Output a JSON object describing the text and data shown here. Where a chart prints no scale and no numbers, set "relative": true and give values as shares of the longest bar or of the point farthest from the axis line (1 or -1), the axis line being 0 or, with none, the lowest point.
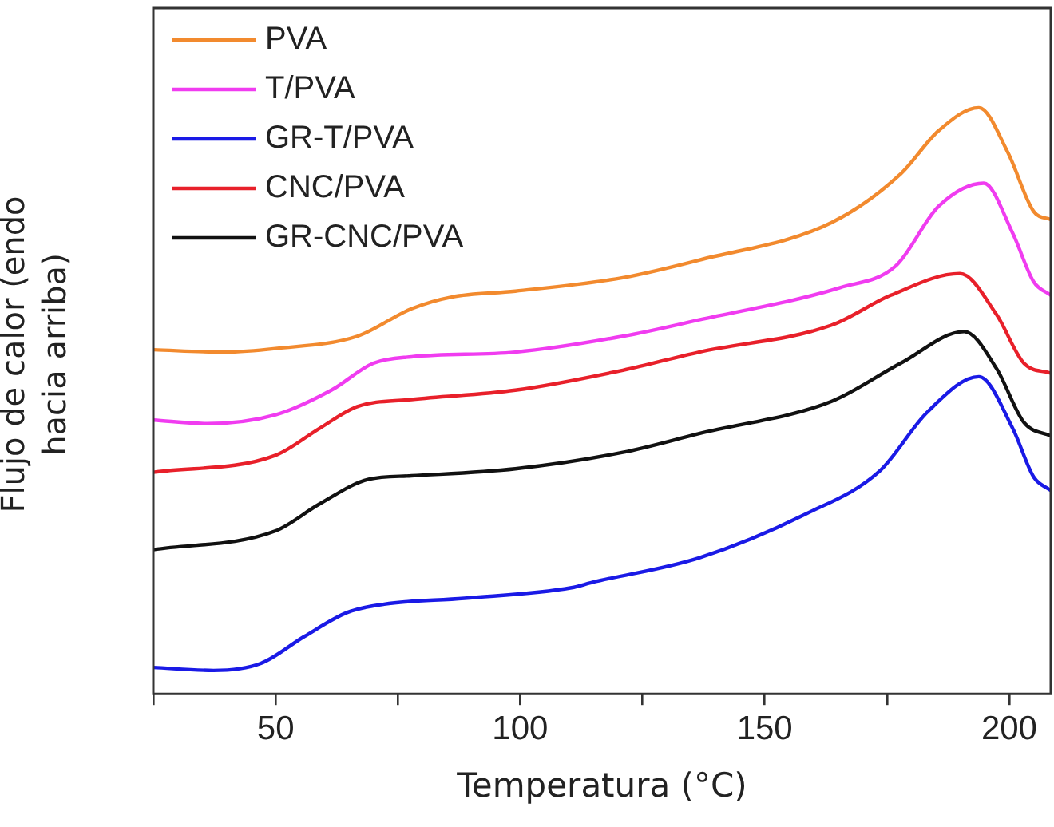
{
  "chart_data": {
    "type": "line",
    "relative": true,
    "xlabel": "Temperatura (°C)",
    "ylabel": "Flujo de calor (endo hacia arriba)",
    "xlim": [
      25,
      208.5
    ],
    "xticks": [
      {
        "value": 25,
        "label": null
      },
      50,
      {
        "value": 75,
        "label": null
      },
      100,
      {
        "value": 125,
        "label": null
      },
      150,
      {
        "value": 175,
        "label": null
      },
      200
    ],
    "grid": false,
    "legend": "top left",
    "marker": "none",
    "line_style": "solid",
    "series": [
      {
        "name": "PVA",
        "color": "#f28a2e",
        "x": [
          25,
          39.5,
          50,
          66.7,
          77.8,
          86,
          99,
          121,
          136.6,
          163.7,
          177.8,
          185.6,
          193.8,
          199.7,
          205,
          208.5
        ],
        "values": [
          0.587,
          0.583,
          0.589,
          0.61,
          0.657,
          0.677,
          0.687,
          0.71,
          0.74,
          0.804,
          0.887,
          0.961,
          1.0,
          0.924,
          0.823,
          0.809
        ]
      },
      {
        "name": "T/PVA",
        "color": "#f03cf0",
        "x": [
          25,
          36,
          50,
          61.4,
          70,
          77.8,
          99,
          121,
          136.6,
          165.4,
          176.8,
          185.6,
          194.8,
          200.7,
          205,
          208.5
        ],
        "values": [
          0.467,
          0.461,
          0.476,
          0.518,
          0.564,
          0.575,
          0.583,
          0.61,
          0.638,
          0.693,
          0.73,
          0.832,
          0.871,
          0.786,
          0.703,
          0.68
        ]
      },
      {
        "name": "GR-T/PVA",
        "color": "#1a1ae6",
        "x": [
          25,
          37.3,
          47,
          55.9,
          64.7,
          72.2,
          88.6,
          110.5,
          114.7,
          136.6,
          158.2,
          173.5,
          183.3,
          193.8,
          200.7,
          205,
          208.5
        ],
        "values": [
          0.045,
          0.04,
          0.052,
          0.098,
          0.139,
          0.153,
          0.163,
          0.181,
          0.19,
          0.232,
          0.306,
          0.38,
          0.481,
          0.541,
          0.453,
          0.37,
          0.347
        ]
      },
      {
        "name": "CNC/PVA",
        "color": "#e8202a",
        "x": [
          25,
          50,
          59,
          66.7,
          77.8,
          99,
          121,
          136.6,
          163.7,
          175.8,
          189.9,
          197.4,
          203,
          208.5
        ],
        "values": [
          0.378,
          0.407,
          0.453,
          0.49,
          0.502,
          0.518,
          0.552,
          0.583,
          0.629,
          0.68,
          0.717,
          0.647,
          0.564,
          0.547
        ]
      },
      {
        "name": "GR-CNC/PVA",
        "color": "#111111",
        "x": [
          25,
          50,
          59,
          69,
          77.8,
          99,
          121,
          136.6,
          163.7,
          177.8,
          190.8,
          197.4,
          203,
          208.5
        ],
        "values": [
          0.246,
          0.278,
          0.324,
          0.366,
          0.372,
          0.384,
          0.412,
          0.444,
          0.499,
          0.564,
          0.618,
          0.555,
          0.463,
          0.44
        ]
      }
    ]
  }
}
